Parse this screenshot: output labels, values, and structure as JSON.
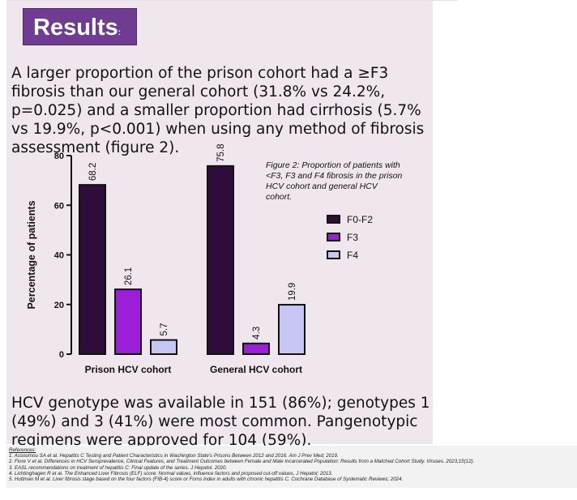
{
  "heading": {
    "text": "Results",
    "suffix": ":"
  },
  "paragraph1": "A larger proportion of the prison cohort had a ≥F3 fibrosis than our general cohort (31.8% vs 24.2%, p=0.025) and a smaller proportion had cirrhosis (5.7% vs 19.9%, p<0.001) when using any method of fibrosis assessment (figure 2).",
  "figure_caption": "Figure 2: Proportion of patients with <F3, F3 and F4 fibrosis in the prison HCV cohort and general HCV cohort.",
  "paragraph2": "HCV genotype was available in 151 (86%); genotypes 1 (49%) and 3 (41%) were most common.  Pangenotypic regimens were approved for 104 (59%).",
  "chart_data": {
    "type": "bar",
    "categories": [
      "Prison HCV cohort",
      "General HCV cohort"
    ],
    "series": [
      {
        "name": "F0-F2",
        "values": [
          68.2,
          75.8
        ],
        "color": "#2e0c3c"
      },
      {
        "name": "F3",
        "values": [
          26.1,
          4.3
        ],
        "color": "#9b1ed8"
      },
      {
        "name": "F4",
        "values": [
          5.7,
          19.9
        ],
        "color": "#c8c6f4"
      }
    ],
    "ylabel": "Percentage of patients",
    "xlabel": "",
    "ylim": [
      0,
      80
    ],
    "yticks": [
      0,
      20,
      40,
      60,
      80
    ],
    "legend_position": "right",
    "grid": false
  },
  "references": {
    "heading": "References:",
    "items": [
      "1. Assoumou SA et al. Hepatitis C Testing and Patient Characteristics in Washington State's Prisons Between 2012 and 2016. Am J Prev Med; 2019.",
      "2. Fiore V et al. Differences in HCV Seroprevalence, Clinical Features, and Treatment Outcomes between Female and Male Incarcerated Population: Results from a Matched Cohort Study. Viruses. 2023;15(12).",
      "3. EASL recommendations on treatment of hepatitis C: Final update of the series. J Hepatol. 2020.",
      "4. Lichtinghagen R et al. The Enhanced Liver Fibrosis (ELF) score: Normal values, influence factors and proposed cut-off values. J Hepatol; 2013.",
      "5. Huttman M et al. Liver fibrosis stage based on the four factors (FIB-4) score or Forns index in adults with chronic hepatitis C. Cochrane Database of Systematic Reviews; 2024."
    ]
  }
}
